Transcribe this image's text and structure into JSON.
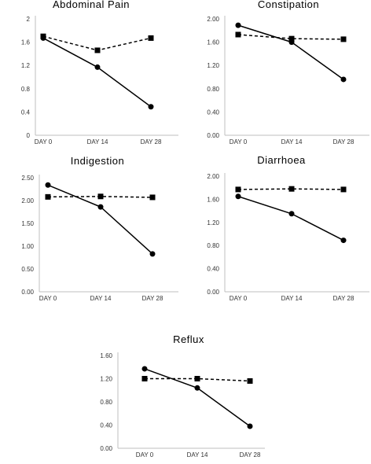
{
  "chart_data": [
    {
      "type": "line",
      "title": "Abdominal Pain",
      "categories": [
        "DAY 0",
        "DAY 14",
        "DAY 28"
      ],
      "ylim": [
        0,
        2
      ],
      "yticks": [
        "0",
        "0.4",
        "0.8",
        "1.2",
        "1.6",
        "2"
      ],
      "series": [
        {
          "style": "dashed-square",
          "values": [
            1.7,
            1.46,
            1.67
          ]
        },
        {
          "style": "solid-circle",
          "values": [
            1.67,
            1.17,
            0.49
          ]
        }
      ],
      "grid": false
    },
    {
      "type": "line",
      "title": "Constipation",
      "categories": [
        "DAY 0",
        "DAY 14",
        "DAY 28"
      ],
      "ylim": [
        0,
        2
      ],
      "yticks": [
        "0.00",
        "0.40",
        "0.80",
        "1.20",
        "1.60",
        "2.00"
      ],
      "series": [
        {
          "style": "dashed-square",
          "values": [
            1.73,
            1.66,
            1.65
          ]
        },
        {
          "style": "solid-circle",
          "values": [
            1.89,
            1.6,
            0.96
          ]
        }
      ],
      "grid": false
    },
    {
      "type": "line",
      "title": "Indigestion",
      "categories": [
        "DAY 0",
        "DAY 14",
        "DAY 28"
      ],
      "ylim": [
        0,
        2.5
      ],
      "yticks": [
        "0.00",
        "0.50",
        "1.00",
        "1.50",
        "2.00",
        "2.50"
      ],
      "series": [
        {
          "style": "dashed-square",
          "values": [
            2.08,
            2.09,
            2.07
          ]
        },
        {
          "style": "solid-circle",
          "values": [
            2.34,
            1.86,
            0.83
          ]
        }
      ],
      "grid": false
    },
    {
      "type": "line",
      "title": "Diarrhoea",
      "categories": [
        "DAY 0",
        "DAY 14",
        "DAY 28"
      ],
      "ylim": [
        0,
        2
      ],
      "yticks": [
        "0.00",
        "0.40",
        "0.80",
        "1.20",
        "1.60",
        "2.00"
      ],
      "series": [
        {
          "style": "dashed-square",
          "values": [
            1.77,
            1.78,
            1.77
          ]
        },
        {
          "style": "solid-circle",
          "values": [
            1.65,
            1.35,
            0.89
          ]
        }
      ],
      "grid": false
    },
    {
      "type": "line",
      "title": "Reflux",
      "categories": [
        "DAY 0",
        "DAY 14",
        "DAY 28"
      ],
      "ylim": [
        0,
        1.6
      ],
      "yticks": [
        "0.00",
        "0.40",
        "0.80",
        "1.20",
        "1.60"
      ],
      "series": [
        {
          "style": "dashed-square",
          "values": [
            1.2,
            1.2,
            1.16
          ]
        },
        {
          "style": "solid-circle",
          "values": [
            1.37,
            1.04,
            0.38
          ]
        }
      ],
      "grid": false
    }
  ]
}
